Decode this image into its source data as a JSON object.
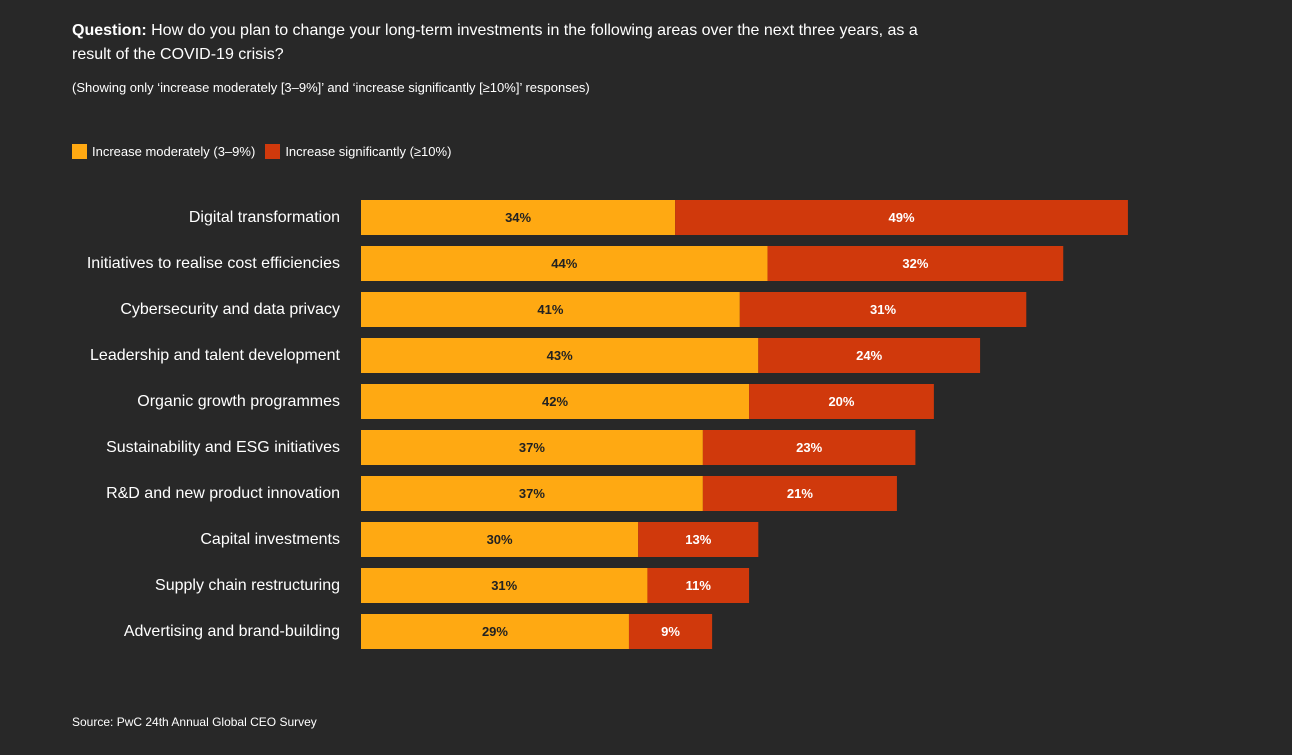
{
  "header": {
    "question_label": "Question:",
    "question_text": " How do you plan to change your long-term investments in the following areas over the next three years, as a result of the COVID-19 crisis?",
    "subtitle": "(Showing only ‘increase moderately [3–9%]’ and ‘increase significantly [≥10%]’ responses)"
  },
  "legend": {
    "moderate_label": "Increase moderately (3–9%)",
    "significant_label": "Increase significantly (≥10%)"
  },
  "colors": {
    "background": "#282828",
    "moderate": "#FFA912",
    "significant": "#D0390C"
  },
  "chart_data": {
    "type": "bar",
    "orientation": "horizontal",
    "stacked": true,
    "categories": [
      "Digital transformation",
      "Initiatives to realise cost efficiencies",
      "Cybersecurity and data privacy",
      "Leadership and talent development",
      "Organic growth programmes",
      "Sustainability and ESG initiatives",
      "R&D and new product innovation",
      "Capital investments",
      "Supply chain restructuring",
      "Advertising and brand-building"
    ],
    "series": [
      {
        "name": "Increase moderately (3–9%)",
        "values": [
          34,
          44,
          41,
          43,
          42,
          37,
          37,
          30,
          31,
          29
        ]
      },
      {
        "name": "Increase significantly (≥10%)",
        "values": [
          49,
          32,
          31,
          24,
          20,
          23,
          21,
          13,
          11,
          9
        ]
      }
    ],
    "value_labels": [
      [
        "34%",
        "44%",
        "41%",
        "43%",
        "42%",
        "37%",
        "37%",
        "30%",
        "31%",
        "29%"
      ],
      [
        "49%",
        "32%",
        "31%",
        "24%",
        "20%",
        "23%",
        "21%",
        "13%",
        "11%",
        "9%"
      ]
    ],
    "xlim": [
      0,
      100
    ],
    "grid": false,
    "legend_position": "top-left"
  },
  "footer": {
    "source": "Source: PwC 24th Annual Global CEO Survey"
  }
}
